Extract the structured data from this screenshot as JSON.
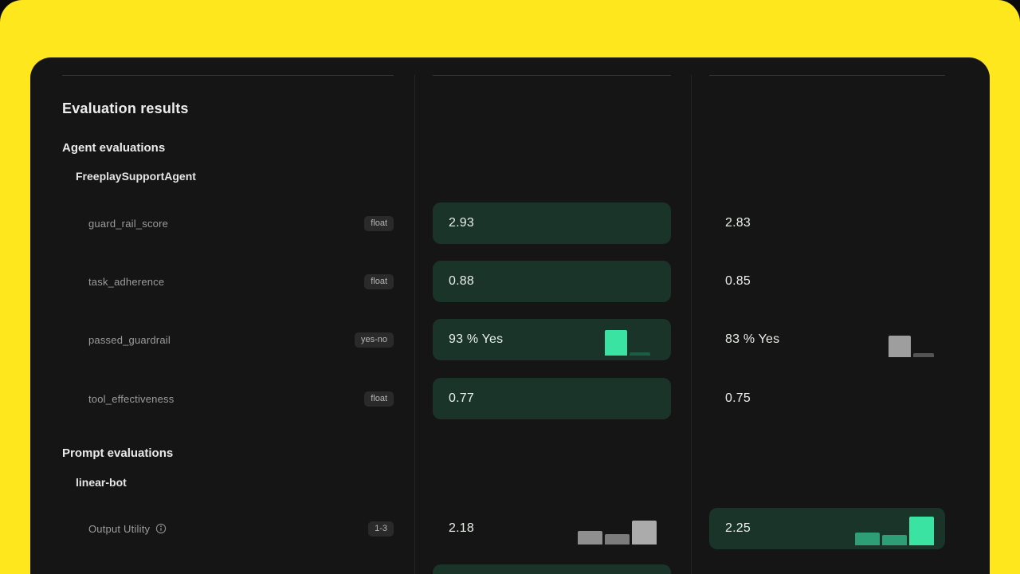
{
  "window": {
    "backdrop_color": "#FFE71E",
    "card_color": "#151515",
    "highlight_cell_color": "#1A3429",
    "accent_green": "#3BE3A2"
  },
  "panel": {
    "title": "Evaluation results",
    "sections": [
      {
        "heading": "Agent evaluations",
        "group": "FreeplaySupportAgent",
        "metrics": [
          {
            "label": "guard_rail_score",
            "type": "float"
          },
          {
            "label": "task_adherence",
            "type": "float"
          },
          {
            "label": "passed_guardrail",
            "type": "yes-no"
          },
          {
            "label": "tool_effectiveness",
            "type": "float"
          }
        ]
      },
      {
        "heading": "Prompt evaluations",
        "group": "linear-bot",
        "metrics": [
          {
            "label": "Output Utility",
            "type": "1-3",
            "info_icon": true
          }
        ]
      }
    ]
  },
  "columns": {
    "a": {
      "partial_next_row_visible": true,
      "results": [
        {
          "metric": "guard_rail_score",
          "value": "2.93",
          "highlighted": true
        },
        {
          "metric": "task_adherence",
          "value": "0.88",
          "highlighted": true
        },
        {
          "metric": "passed_guardrail",
          "value": "93 % Yes",
          "highlighted": true,
          "chart": {
            "type": "bar",
            "bars": [
              {
                "label": "Yes",
                "pct": 93,
                "h": 32,
                "w": 28,
                "c": "#3BE3A2"
              },
              {
                "label": "No",
                "pct": 7,
                "h": 4,
                "w": 26,
                "c": "#1E5C45"
              }
            ]
          }
        },
        {
          "metric": "tool_effectiveness",
          "value": "0.77",
          "highlighted": true
        },
        {
          "metric": "Output Utility",
          "value": "2.18",
          "highlighted": false,
          "chart": {
            "type": "bar",
            "bars": [
              {
                "label": "1",
                "h": 17,
                "w": 31,
                "c": "#8F8F8F"
              },
              {
                "label": "2",
                "h": 13,
                "w": 31,
                "c": "#7C7C7C"
              },
              {
                "label": "3",
                "h": 30,
                "w": 31,
                "c": "#ABABAB"
              }
            ]
          }
        }
      ]
    },
    "b": {
      "results": [
        {
          "metric": "guard_rail_score",
          "value": "2.83",
          "highlighted": false
        },
        {
          "metric": "task_adherence",
          "value": "0.85",
          "highlighted": false
        },
        {
          "metric": "passed_guardrail",
          "value": "83 % Yes",
          "highlighted": false,
          "chart": {
            "type": "bar",
            "bars": [
              {
                "label": "Yes",
                "pct": 83,
                "h": 27,
                "w": 28,
                "c": "#9E9E9E"
              },
              {
                "label": "No",
                "pct": 17,
                "h": 5,
                "w": 26,
                "c": "#545454"
              }
            ]
          }
        },
        {
          "metric": "tool_effectiveness",
          "value": "0.75",
          "highlighted": false
        },
        {
          "metric": "Output Utility",
          "value": "2.25",
          "highlighted": true,
          "chart": {
            "type": "bar",
            "bars": [
              {
                "label": "1",
                "h": 16,
                "w": 31,
                "c": "#2E9E77"
              },
              {
                "label": "2",
                "h": 13,
                "w": 31,
                "c": "#2E9E77"
              },
              {
                "label": "3",
                "h": 36,
                "w": 31,
                "c": "#3BE3A2"
              }
            ]
          }
        }
      ]
    }
  }
}
